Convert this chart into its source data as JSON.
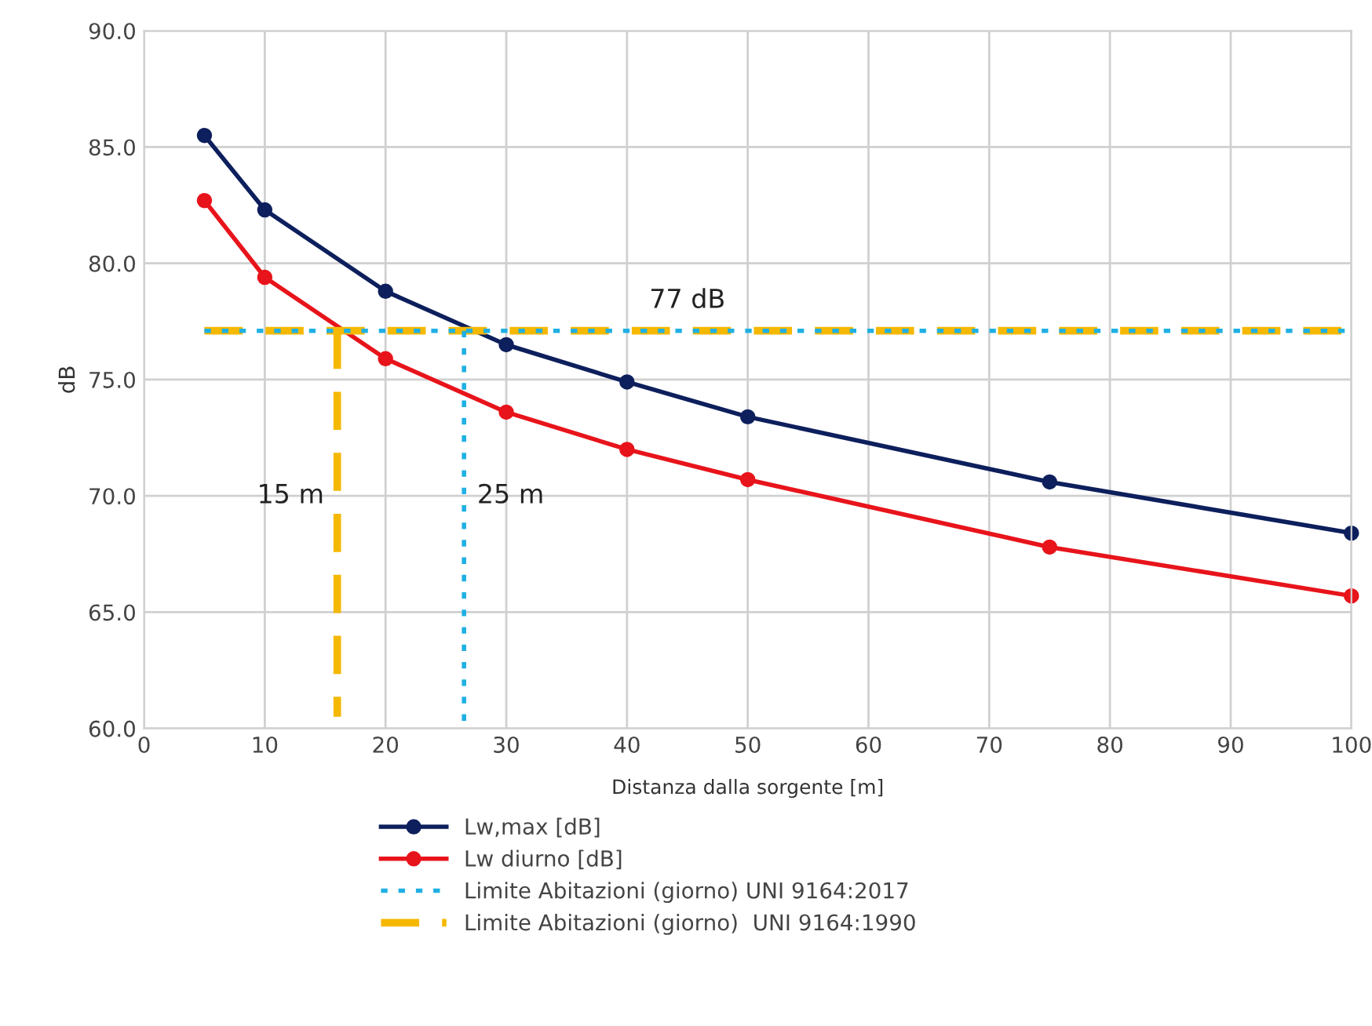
{
  "chart_data": {
    "type": "line",
    "xlabel": "Distanza dalla sorgente [m]",
    "ylabel": "dB",
    "xlim": [
      0,
      100
    ],
    "xticks": [
      0,
      10,
      20,
      30,
      40,
      50,
      60,
      70,
      80,
      90,
      100
    ],
    "ylim": [
      60,
      90
    ],
    "yticks": [
      {
        "value": 60,
        "label": "60.0"
      },
      {
        "value": 65,
        "label": "65.0"
      },
      {
        "value": 70,
        "label": "70.0"
      },
      {
        "value": 75,
        "label": "75.0"
      },
      {
        "value": 80,
        "label": "80.0"
      },
      {
        "value": 85,
        "label": "85.0"
      },
      {
        "value": 90,
        "label": "90.0"
      }
    ],
    "grid": true,
    "legend": "bottom",
    "series": [
      {
        "name": "Lw,max [dB]",
        "color": "#0d1f5c",
        "marker": "circle",
        "line_style": "solid",
        "x": [
          5,
          10,
          20,
          30,
          40,
          50,
          75,
          100
        ],
        "values": [
          85.5,
          82.3,
          78.8,
          76.5,
          74.9,
          73.4,
          70.6,
          68.4
        ]
      },
      {
        "name": "Lw diurno [dB]",
        "color": "#e8141b",
        "marker": "circle",
        "line_style": "solid",
        "x": [
          5,
          10,
          20,
          30,
          40,
          50,
          75,
          100
        ],
        "values": [
          82.7,
          79.4,
          75.9,
          73.6,
          72.0,
          70.7,
          67.8,
          65.7
        ]
      },
      {
        "name": "Limite Abitazioni (giorno) UNI 9164:2017",
        "color": "#1fb0e3",
        "marker": "none",
        "line_style": "dotted",
        "x": [
          5,
          100
        ],
        "values": [
          77.1,
          77.1
        ]
      },
      {
        "name": "Limite Abitazioni (giorno)  UNI 9164:1990",
        "color": "#f5b800",
        "marker": "none",
        "line_style": "dashed",
        "x": [
          5,
          100
        ],
        "values": [
          77.1,
          77.1
        ]
      },
      {
        "color": "#1fb0e3",
        "marker": "none",
        "line_style": "dotted",
        "x": [
          26.5,
          26.5
        ],
        "values": [
          77.1,
          60.0
        ]
      },
      {
        "color": "#f5b800",
        "marker": "none",
        "line_style": "dashed",
        "x": [
          16,
          16
        ],
        "values": [
          77.1,
          60.5
        ]
      }
    ],
    "annotations": [
      {
        "text": "77 dB",
        "x": 45,
        "y": 77.1
      },
      {
        "text": "15 m",
        "x": 16,
        "y": 70
      },
      {
        "text": "25 m",
        "x": 26.5,
        "y": 70
      }
    ]
  }
}
